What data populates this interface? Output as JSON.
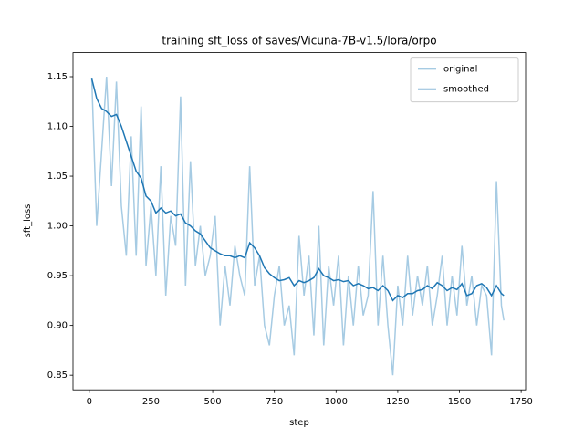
{
  "chart_data": {
    "type": "line",
    "title": "training sft_loss of saves/Vicuna-7B-v1.5/lora/orpo",
    "x_label": "step",
    "y_label": "sft_loss",
    "x": [
      10,
      30,
      50,
      70,
      90,
      110,
      130,
      150,
      170,
      190,
      210,
      230,
      250,
      270,
      290,
      310,
      330,
      350,
      370,
      390,
      410,
      430,
      450,
      470,
      490,
      510,
      530,
      550,
      570,
      590,
      610,
      630,
      650,
      670,
      690,
      710,
      730,
      750,
      770,
      790,
      810,
      830,
      850,
      870,
      890,
      910,
      930,
      950,
      970,
      990,
      1010,
      1030,
      1050,
      1070,
      1090,
      1110,
      1130,
      1150,
      1170,
      1190,
      1210,
      1230,
      1250,
      1270,
      1290,
      1310,
      1330,
      1350,
      1370,
      1390,
      1410,
      1430,
      1450,
      1470,
      1490,
      1510,
      1530,
      1550,
      1570,
      1590,
      1610,
      1630,
      1650,
      1670,
      1680
    ],
    "series": [
      {
        "name": "original",
        "color": "#a6cbe3",
        "values": [
          1.148,
          1.0,
          1.075,
          1.15,
          1.04,
          1.145,
          1.02,
          0.97,
          1.09,
          0.97,
          1.12,
          0.96,
          1.02,
          0.95,
          1.06,
          0.93,
          1.01,
          0.98,
          1.13,
          0.94,
          1.065,
          0.96,
          1.0,
          0.95,
          0.97,
          1.01,
          0.9,
          0.96,
          0.92,
          0.98,
          0.95,
          0.93,
          1.06,
          0.94,
          0.97,
          0.9,
          0.88,
          0.93,
          0.96,
          0.9,
          0.92,
          0.87,
          0.99,
          0.93,
          0.97,
          0.89,
          1.0,
          0.88,
          0.96,
          0.92,
          0.97,
          0.88,
          0.95,
          0.9,
          0.96,
          0.91,
          0.93,
          1.035,
          0.9,
          0.97,
          0.9,
          0.85,
          0.94,
          0.9,
          0.97,
          0.91,
          0.95,
          0.92,
          0.96,
          0.9,
          0.93,
          0.97,
          0.9,
          0.95,
          0.91,
          0.98,
          0.92,
          0.95,
          0.9,
          0.94,
          0.93,
          0.87,
          1.045,
          0.92,
          0.905
        ]
      },
      {
        "name": "smoothed",
        "color": "#1f77b4",
        "values": [
          1.148,
          1.128,
          1.118,
          1.115,
          1.11,
          1.112,
          1.1,
          1.085,
          1.07,
          1.055,
          1.048,
          1.03,
          1.025,
          1.013,
          1.018,
          1.013,
          1.015,
          1.01,
          1.012,
          1.003,
          1.0,
          0.995,
          0.992,
          0.985,
          0.978,
          0.975,
          0.972,
          0.97,
          0.97,
          0.968,
          0.97,
          0.968,
          0.983,
          0.978,
          0.97,
          0.958,
          0.952,
          0.948,
          0.945,
          0.946,
          0.948,
          0.94,
          0.945,
          0.943,
          0.945,
          0.948,
          0.957,
          0.95,
          0.948,
          0.945,
          0.946,
          0.944,
          0.945,
          0.94,
          0.942,
          0.94,
          0.937,
          0.938,
          0.935,
          0.94,
          0.935,
          0.925,
          0.93,
          0.928,
          0.932,
          0.932,
          0.935,
          0.936,
          0.94,
          0.937,
          0.943,
          0.94,
          0.935,
          0.938,
          0.936,
          0.942,
          0.93,
          0.932,
          0.94,
          0.942,
          0.938,
          0.93,
          0.94,
          0.932,
          0.93
        ]
      }
    ],
    "xlim": [
      -66,
      1768
    ],
    "ylim": [
      0.8353,
      1.1742
    ],
    "xticks": [
      0,
      250,
      500,
      750,
      1000,
      1250,
      1500,
      1750
    ],
    "yticks": [
      0.85,
      {
        "value": 0.9,
        "label": "0.90"
      },
      0.95,
      {
        "value": 1.0,
        "label": "1.00"
      },
      1.05,
      {
        "value": 1.1,
        "label": "1.10"
      },
      1.15
    ],
    "legend": "upper right"
  }
}
